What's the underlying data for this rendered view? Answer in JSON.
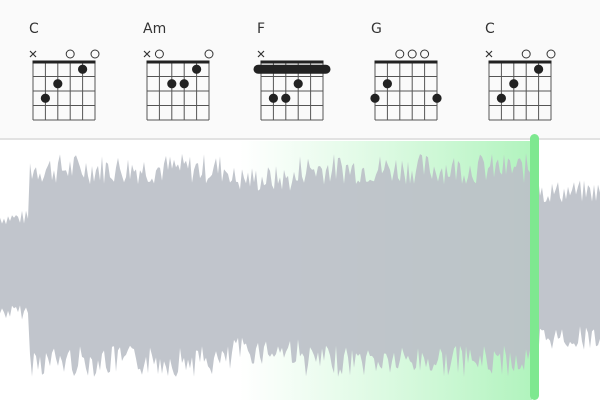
{
  "chords": [
    {
      "name": "C"
    },
    {
      "name": "Am"
    },
    {
      "name": "F"
    },
    {
      "name": "G"
    },
    {
      "name": "C"
    }
  ]
}
